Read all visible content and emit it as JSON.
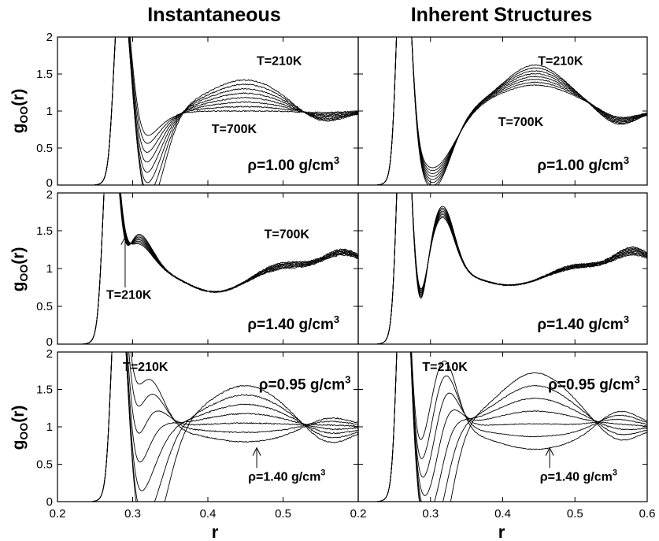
{
  "column_titles": [
    "Instantaneous",
    "Inherent Structures"
  ],
  "y_axis_label": {
    "main": "g",
    "sub": "OO",
    "arg": "(r)"
  },
  "x_axis_label": "r",
  "chart_data": [
    {
      "type": "line",
      "column": "Instantaneous",
      "row": 1,
      "xlim": [
        0.2,
        0.6
      ],
      "ylim": [
        0,
        2
      ],
      "yticks": [
        "0",
        "0.5",
        "1",
        "1.5",
        "2"
      ],
      "xticks": [],
      "annotations": [
        {
          "text": "T=210K",
          "x": 0.495,
          "y": 1.62
        },
        {
          "text": "T=700K",
          "x": 0.435,
          "y": 0.7
        }
      ],
      "density": {
        "prefix": "ρ=1.00 g/cm",
        "sup": "3",
        "x": 0.575,
        "y": 0.2
      },
      "arrow": null,
      "curve_template": "family",
      "params": {
        "n": 8,
        "peakR": 0.285,
        "peakH": 2.2,
        "peakW": 0.013,
        "peakHV": 0,
        "minR": [
          0.32,
          0.295
        ],
        "minD": [
          1.3,
          0.55
        ],
        "minW": [
          0.022,
          0.03
        ],
        "secR": 0.45,
        "secA": [
          0.42,
          0.0
        ],
        "secW": [
          0.05,
          0.05
        ],
        "thirdR": 0.55,
        "thirdA": [
          -0.18,
          -0.02
        ],
        "thirdW": 0.03,
        "noise": 0.015
      }
    },
    {
      "type": "line",
      "column": "Inherent Structures",
      "row": 1,
      "xlim": [
        0.2,
        0.6
      ],
      "ylim": [
        0,
        2
      ],
      "yticks": [],
      "xticks": [],
      "annotations": [
        {
          "text": "T=210K",
          "x": 0.48,
          "y": 1.62
        },
        {
          "text": "T=700K",
          "x": 0.425,
          "y": 0.8
        }
      ],
      "density": {
        "prefix": "ρ=1.00 g/cm",
        "sup": "3",
        "x": 0.575,
        "y": 0.2
      },
      "arrow": null,
      "curve_template": "family",
      "params": {
        "n": 8,
        "peakR": 0.262,
        "peakH": 3.0,
        "peakW": 0.01,
        "peakHV": 0,
        "minR": [
          0.303,
          0.303
        ],
        "minD": [
          1.05,
          0.78
        ],
        "minW": [
          0.025,
          0.03
        ],
        "secR": 0.445,
        "secA": [
          0.62,
          0.35
        ],
        "secW": [
          0.045,
          0.055
        ],
        "thirdR": 0.56,
        "thirdA": [
          -0.2,
          -0.12
        ],
        "thirdW": 0.025,
        "noise": 0.01
      }
    },
    {
      "type": "line",
      "column": "Instantaneous",
      "row": 2,
      "xlim": [
        0.2,
        0.6
      ],
      "ylim": [
        0,
        2
      ],
      "yticks": [
        "0",
        "0.5",
        "1",
        "1.5",
        "2"
      ],
      "xticks": [],
      "annotations": [
        {
          "text": "T=700K",
          "x": 0.505,
          "y": 1.4
        },
        {
          "text": "T=210K",
          "x": 0.295,
          "y": 0.6
        }
      ],
      "density": {
        "prefix": "ρ=1.40 g/cm",
        "sup": "3",
        "x": 0.575,
        "y": 0.2
      },
      "arrow": {
        "x": 0.29,
        "from_y": 0.75,
        "to_y": 1.42
      },
      "curve_template": "dense",
      "params": {
        "n": 8,
        "peakR": 0.27,
        "peakH": 2.3,
        "peakW": 0.011,
        "peakHV": 0,
        "minR": [
          0.285,
          0.285
        ],
        "minD": [
          0.5,
          0.2
        ],
        "minW": [
          0.01,
          0.01
        ],
        "shoulderR": 0.305,
        "shoulderA": [
          0.5,
          0.35
        ],
        "shoulderW": 0.02,
        "base": 1.0,
        "dipR": 0.41,
        "dipA": -0.31,
        "dipW": 0.04,
        "secR": 0.5,
        "secA": [
          0.1,
          0.02
        ],
        "secW": 0.03,
        "thirdR": 0.58,
        "thirdA": [
          0.25,
          0.18
        ],
        "thirdW": 0.025,
        "noise": 0.018
      }
    },
    {
      "type": "line",
      "column": "Inherent Structures",
      "row": 2,
      "xlim": [
        0.2,
        0.6
      ],
      "ylim": [
        0,
        2
      ],
      "yticks": [],
      "xticks": [],
      "annotations": [],
      "density": {
        "prefix": "ρ=1.40 g/cm",
        "sup": "3",
        "x": 0.575,
        "y": 0.2
      },
      "arrow": null,
      "curve_template": "dense",
      "params": {
        "n": 8,
        "peakR": 0.262,
        "peakH": 3.0,
        "peakW": 0.009,
        "peakHV": 0,
        "minR": [
          0.286,
          0.286
        ],
        "minD": [
          0.6,
          0.45
        ],
        "minW": [
          0.009,
          0.009
        ],
        "shoulderR": 0.317,
        "shoulderA": [
          0.85,
          0.7
        ],
        "shoulderW": 0.016,
        "base": 1.0,
        "dipR": 0.41,
        "dipA": -0.22,
        "dipW": 0.045,
        "secR": 0.5,
        "secA": [
          0.08,
          0.03
        ],
        "secW": 0.03,
        "thirdR": 0.58,
        "thirdA": [
          0.28,
          0.18
        ],
        "thirdW": 0.025,
        "noise": 0.015
      }
    },
    {
      "type": "line",
      "column": "Instantaneous",
      "row": 3,
      "xlim": [
        0.2,
        0.6
      ],
      "ylim": [
        0,
        2
      ],
      "yticks": [
        "0",
        "0.5",
        "1",
        "1.5",
        "2"
      ],
      "xticks": [
        "0.2",
        "0.3",
        "0.4",
        "0.5"
      ],
      "annotations": [
        {
          "text": "T=210K",
          "x": 0.317,
          "y": 1.75
        }
      ],
      "density": {
        "prefix": "ρ=0.95 g/cm",
        "sup": "3",
        "x": 0.59,
        "y": 1.5
      },
      "density2": {
        "prefix": "ρ=1.40 g/cm",
        "sup": "3",
        "x": 0.505,
        "y": 0.28
      },
      "arrow": {
        "x": 0.465,
        "from_y": 0.45,
        "to_y": 0.72
      },
      "curve_template": "family",
      "params": {
        "n": 7,
        "peakR": 0.281,
        "peakH": 2.6,
        "peakW": 0.011,
        "peakHV": 0,
        "minR": [
          0.32,
          0.285
        ],
        "minD": [
          1.6,
          0.25
        ],
        "minW": [
          0.025,
          0.02
        ],
        "secR": 0.45,
        "secA": [
          0.55,
          -0.2
        ],
        "secW": [
          0.05,
          0.06
        ],
        "thirdR": 0.56,
        "thirdA": [
          -0.25,
          0.15
        ],
        "thirdW": 0.03,
        "shoulderR": 0.32,
        "shoulderA": [
          0.0,
          0.7
        ],
        "shoulderW": 0.02,
        "noise": 0.015
      }
    },
    {
      "type": "line",
      "column": "Inherent Structures",
      "row": 3,
      "xlim": [
        0.2,
        0.6
      ],
      "ylim": [
        0,
        2
      ],
      "yticks": [],
      "xticks": [
        "0.2",
        "0.3",
        "0.4",
        "0.5",
        "0.6"
      ],
      "annotations": [
        {
          "text": "T=210K",
          "x": 0.32,
          "y": 1.75
        }
      ],
      "density": {
        "prefix": "ρ=0.95 g/cm",
        "sup": "3",
        "x": 0.59,
        "y": 1.5
      },
      "density2": {
        "prefix": "ρ=1.40 g/cm",
        "sup": "3",
        "x": 0.505,
        "y": 0.28
      },
      "arrow": {
        "x": 0.465,
        "from_y": 0.45,
        "to_y": 0.72
      },
      "curve_template": "family",
      "params": {
        "n": 7,
        "peakR": 0.262,
        "peakH": 3.0,
        "peakW": 0.009,
        "peakHV": 0,
        "minR": [
          0.305,
          0.285
        ],
        "minD": [
          1.8,
          0.45
        ],
        "minW": [
          0.022,
          0.015
        ],
        "secR": 0.445,
        "secA": [
          0.72,
          -0.3
        ],
        "secW": [
          0.05,
          0.06
        ],
        "thirdR": 0.56,
        "thirdA": [
          -0.22,
          0.25
        ],
        "thirdW": 0.028,
        "shoulderR": 0.318,
        "shoulderA": [
          0.0,
          0.95
        ],
        "shoulderW": 0.018,
        "noise": 0.01
      }
    }
  ]
}
